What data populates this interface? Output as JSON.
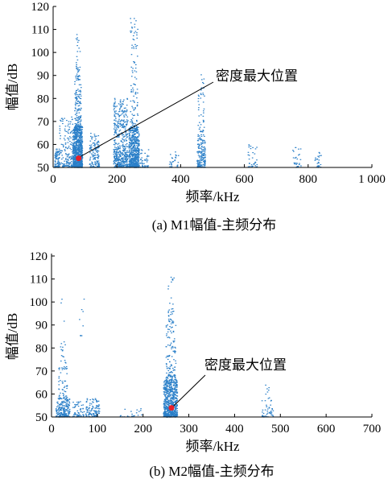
{
  "chart_data": [
    {
      "type": "scatter",
      "caption": "(a)  M1幅值-主频分布",
      "xlabel": "频率/kHz",
      "ylabel": "幅值/dB",
      "xlim": [
        0,
        1000
      ],
      "ylim": [
        50,
        120
      ],
      "xticks": [
        0,
        200,
        400,
        600,
        800,
        1000
      ],
      "xtick_labels": [
        "0",
        "200",
        "400",
        "600",
        "800",
        "1 000"
      ],
      "yticks": [
        50,
        60,
        70,
        80,
        90,
        100,
        110,
        120
      ],
      "ytick_labels": [
        "50",
        "60",
        "70",
        "80",
        "90",
        "100",
        "110",
        "120"
      ],
      "point_color": "#2a7fc8",
      "marker_color": "#e8202a",
      "annotation": {
        "text": "密度最大位置",
        "x": 80,
        "y": 54
      },
      "clusters": [
        {
          "x": [
            5,
            20
          ],
          "y": [
            50,
            58
          ],
          "n": 110
        },
        {
          "x": [
            20,
            62
          ],
          "y": [
            50,
            72
          ],
          "n": 160
        },
        {
          "x": [
            62,
            92
          ],
          "y": [
            50,
            68
          ],
          "n": 900
        },
        {
          "x": [
            68,
            88
          ],
          "y": [
            66,
            90
          ],
          "n": 160
        },
        {
          "x": [
            72,
            85
          ],
          "y": [
            88,
            108
          ],
          "n": 35
        },
        {
          "x": [
            115,
            145
          ],
          "y": [
            50,
            65
          ],
          "n": 140
        },
        {
          "x": [
            190,
            235
          ],
          "y": [
            50,
            80
          ],
          "n": 500
        },
        {
          "x": [
            238,
            270
          ],
          "y": [
            50,
            68
          ],
          "n": 600
        },
        {
          "x": [
            242,
            266
          ],
          "y": [
            66,
            115
          ],
          "n": 110
        },
        {
          "x": [
            272,
            300
          ],
          "y": [
            50,
            58
          ],
          "n": 45
        },
        {
          "x": [
            365,
            395
          ],
          "y": [
            50,
            57
          ],
          "n": 30
        },
        {
          "x": [
            452,
            478
          ],
          "y": [
            50,
            62
          ],
          "n": 170
        },
        {
          "x": [
            455,
            475
          ],
          "y": [
            62,
            92
          ],
          "n": 60
        },
        {
          "x": [
            612,
            640
          ],
          "y": [
            50,
            60
          ],
          "n": 35
        },
        {
          "x": [
            752,
            778
          ],
          "y": [
            50,
            60
          ],
          "n": 30
        },
        {
          "x": [
            815,
            842
          ],
          "y": [
            50,
            57
          ],
          "n": 25
        }
      ]
    },
    {
      "type": "scatter",
      "caption": "(b) M2幅值-主频分布",
      "xlabel": "频率/kHz",
      "ylabel": "幅值/dB",
      "xlim": [
        0,
        700
      ],
      "ylim": [
        50,
        120
      ],
      "xticks": [
        0,
        100,
        200,
        300,
        400,
        500,
        600,
        700
      ],
      "xtick_labels": [
        "0",
        "100",
        "200",
        "300",
        "400",
        "500",
        "600",
        "700"
      ],
      "yticks": [
        50,
        60,
        70,
        80,
        90,
        100,
        110,
        120
      ],
      "ytick_labels": [
        "50",
        "60",
        "70",
        "80",
        "90",
        "100",
        "110",
        "120"
      ],
      "point_color": "#2a7fc8",
      "marker_color": "#e8202a",
      "annotation": {
        "text": "密度最大位置",
        "x": 262,
        "y": 54
      },
      "clusters": [
        {
          "x": [
            10,
            40
          ],
          "y": [
            50,
            58
          ],
          "n": 200
        },
        {
          "x": [
            15,
            35
          ],
          "y": [
            58,
            75
          ],
          "n": 60
        },
        {
          "x": [
            20,
            32
          ],
          "y": [
            75,
            104
          ],
          "n": 14
        },
        {
          "x": [
            45,
            72
          ],
          "y": [
            50,
            57
          ],
          "n": 60
        },
        {
          "x": [
            60,
            72
          ],
          "y": [
            85,
            111
          ],
          "n": 8
        },
        {
          "x": [
            75,
            105
          ],
          "y": [
            50,
            58
          ],
          "n": 110
        },
        {
          "x": [
            150,
            200
          ],
          "y": [
            50,
            54
          ],
          "n": 20
        },
        {
          "x": [
            245,
            275
          ],
          "y": [
            50,
            66
          ],
          "n": 650
        },
        {
          "x": [
            250,
            272
          ],
          "y": [
            66,
            90
          ],
          "n": 120
        },
        {
          "x": [
            255,
            268
          ],
          "y": [
            90,
            111
          ],
          "n": 35
        },
        {
          "x": [
            460,
            485
          ],
          "y": [
            50,
            58
          ],
          "n": 40
        },
        {
          "x": [
            468,
            480
          ],
          "y": [
            58,
            67
          ],
          "n": 8
        }
      ]
    }
  ]
}
